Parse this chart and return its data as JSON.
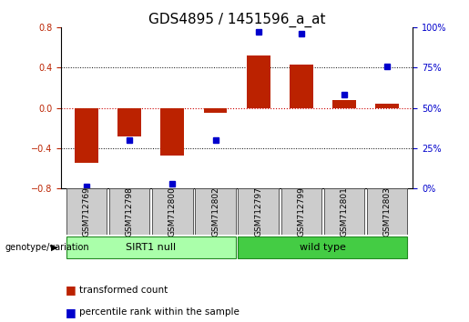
{
  "title": "GDS4895 / 1451596_a_at",
  "samples": [
    "GSM712769",
    "GSM712798",
    "GSM712800",
    "GSM712802",
    "GSM712797",
    "GSM712799",
    "GSM712801",
    "GSM712803"
  ],
  "bar_values": [
    -0.55,
    -0.28,
    -0.47,
    -0.05,
    0.52,
    0.43,
    0.08,
    0.04
  ],
  "dot_values_pct": [
    1,
    30,
    3,
    30,
    97,
    96,
    58,
    76
  ],
  "ylim_left": [
    -0.8,
    0.8
  ],
  "ylim_right": [
    0,
    100
  ],
  "yticks_left": [
    -0.8,
    -0.4,
    0.0,
    0.4,
    0.8
  ],
  "yticks_right": [
    0,
    25,
    50,
    75,
    100
  ],
  "ytick_labels_right": [
    "0%",
    "25%",
    "50%",
    "75%",
    "100%"
  ],
  "bar_color": "#bb2200",
  "dot_color": "#0000cc",
  "grid_color": "#000000",
  "zero_line_color": "#cc0000",
  "group1_label": "SIRT1 null",
  "group2_label": "wild type",
  "group1_color": "#aaffaa",
  "group2_color": "#44cc44",
  "group1_indices": [
    0,
    1,
    2,
    3
  ],
  "group2_indices": [
    4,
    5,
    6,
    7
  ],
  "genotype_label": "genotype/variation",
  "legend_bar_label": "transformed count",
  "legend_dot_label": "percentile rank within the sample",
  "title_fontsize": 11,
  "tick_fontsize": 7,
  "sample_label_fontsize": 6.5
}
